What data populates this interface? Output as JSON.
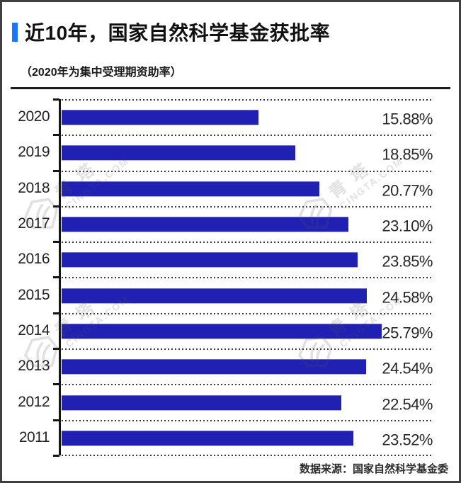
{
  "header": {
    "title": "近10年，国家自然科学基金获批率",
    "subtitle": "（2020年为集中受理期资助率）",
    "accent_color": "#1a75ff"
  },
  "chart_data": {
    "type": "bar",
    "orientation": "horizontal",
    "title": "近10年，国家自然科学基金获批率",
    "subtitle": "（2020年为集中受理期资助率）",
    "categories": [
      "2020",
      "2019",
      "2018",
      "2017",
      "2016",
      "2015",
      "2014",
      "2013",
      "2012",
      "2011"
    ],
    "values": [
      15.88,
      18.85,
      20.77,
      23.1,
      23.85,
      24.58,
      25.79,
      24.54,
      22.54,
      23.52
    ],
    "value_labels": [
      "15.88%",
      "18.85%",
      "20.77%",
      "23.10%",
      "23.85%",
      "24.58%",
      "25.79%",
      "24.54%",
      "22.54%",
      "23.52%"
    ],
    "xlabel": "",
    "ylabel": "",
    "xlim": [
      0,
      27
    ],
    "bar_color": "#2020b2",
    "grid": "dotted horizontal separators between rows",
    "legend": "none",
    "value_label_position": "right edge of plot, right-aligned"
  },
  "footer": {
    "source": "数据来源：国家自然科学基金委"
  },
  "watermark": {
    "cn": "青塔",
    "en": "CINGTA.COM"
  }
}
